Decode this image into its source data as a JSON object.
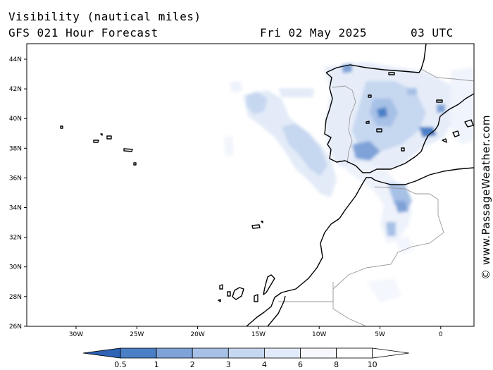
{
  "header": {
    "title": "Visibility (nautical miles)",
    "subtitle": "GFS 021 Hour Forecast",
    "date": "Fri 02 May 2025",
    "time": "03 UTC"
  },
  "map": {
    "lat_labels": [
      "44N",
      "42N",
      "40N",
      "38N",
      "36N",
      "34N",
      "32N",
      "30N",
      "28N",
      "26N"
    ],
    "lon_labels": [
      "30W",
      "25W",
      "20W",
      "15W",
      "10W",
      "5W",
      "0"
    ],
    "coastline_color": "#000000",
    "border_color": "#9a9a9a",
    "land_fill": "#ffffff",
    "sea_fill": "#ffffff"
  },
  "colorbar": {
    "labels": [
      "0.5",
      "1",
      "2",
      "3",
      "4",
      "6",
      "8",
      "10"
    ],
    "colors": [
      "#2e63b6",
      "#4a7fc6",
      "#7fa3d8",
      "#a6c0e6",
      "#c6d7f0",
      "#e1eaf8",
      "#f6f8fe",
      "#ffffff"
    ]
  },
  "watermark": "© www.PassageWeather.com"
}
